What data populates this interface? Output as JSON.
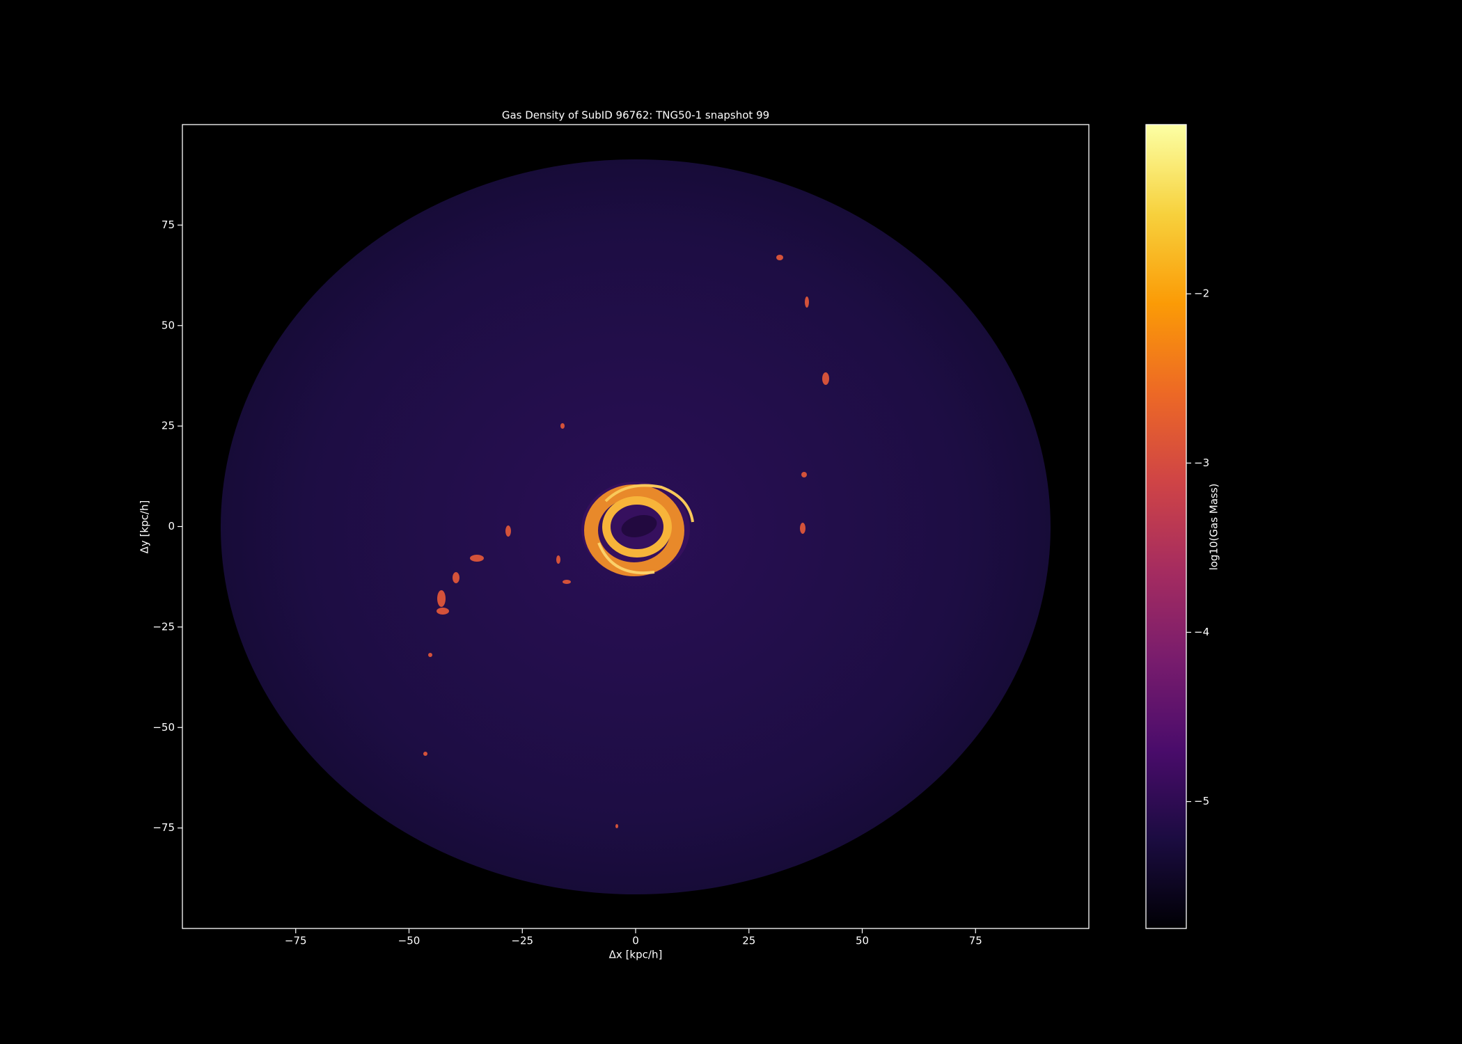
{
  "chart_data": {
    "type": "density-map",
    "title": "Gas Density of SubID 96762: TNG50-1 snapshot 99",
    "xlabel": "Δx [kpc/h]",
    "ylabel": "Δy [kpc/h]",
    "xlim": [
      -100,
      100
    ],
    "ylim": [
      -100,
      100
    ],
    "xticks": [
      {
        "value": -75,
        "label": "−75"
      },
      {
        "value": -50,
        "label": "−50"
      },
      {
        "value": -25,
        "label": "−25"
      },
      0,
      25,
      50,
      75
    ],
    "yticks": [
      {
        "value": -75,
        "label": "−75"
      },
      {
        "value": -50,
        "label": "−50"
      },
      {
        "value": -25,
        "label": "−25"
      },
      0,
      25,
      50,
      75
    ],
    "colorbar": {
      "label": "log10(Gas Mass)",
      "lim": [
        -5.75,
        -1.0
      ],
      "ticks": [
        {
          "value": -5,
          "label": "−5"
        },
        {
          "value": -4,
          "label": "−4"
        },
        {
          "value": -3,
          "label": "−3"
        },
        {
          "value": -2,
          "label": "−2"
        }
      ],
      "colormap": [
        "#000004",
        "#1b0c41",
        "#4a0c6b",
        "#781c6d",
        "#a52c60",
        "#cf4446",
        "#ed6925",
        "#fb9b06",
        "#f7d13d",
        "#fcffa4"
      ]
    },
    "background": "#000000",
    "foreground": "#ffffff"
  }
}
